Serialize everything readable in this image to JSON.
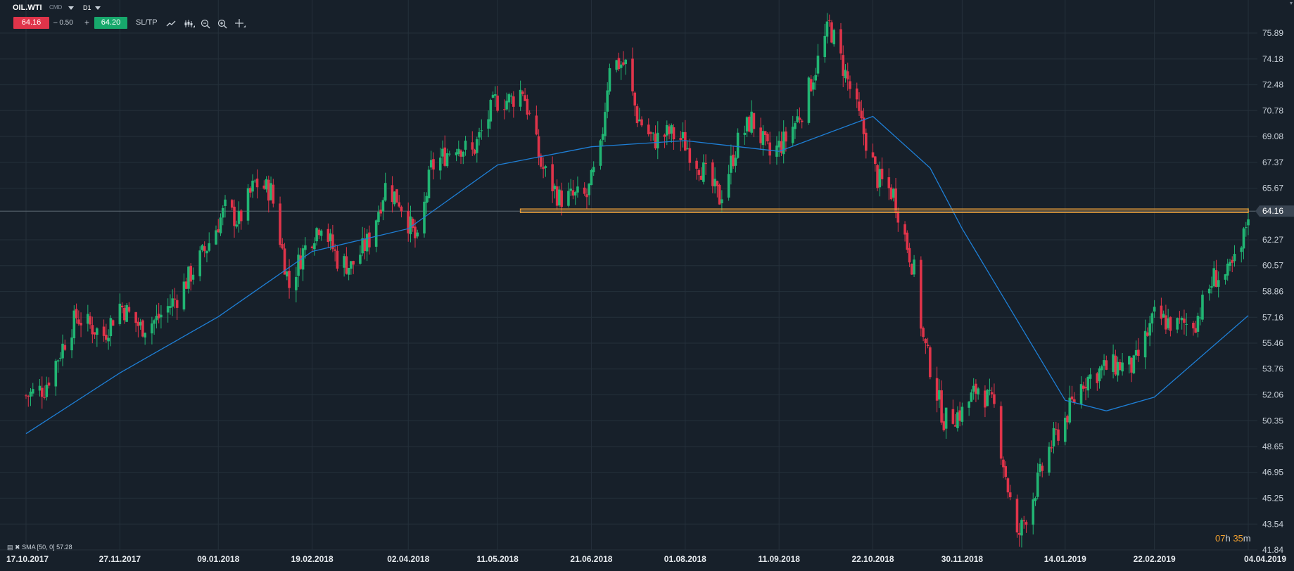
{
  "header": {
    "symbol": "OIL.WTI",
    "category": "CMD",
    "interval": "D1",
    "sell_price": "64.16",
    "buy_price": "64.20",
    "spread": "– 0.50",
    "plus": "+",
    "sltp": "SL/TP",
    "tools": [
      "line-chart-icon",
      "indicators-icon",
      "zoom-out-icon",
      "zoom-in-icon",
      "crosshair-icon"
    ]
  },
  "indicator_legend": "SMA [50, 0] 57.28",
  "timer": {
    "hours": "07",
    "h": "h",
    "minutes": "35",
    "m": "m"
  },
  "colors": {
    "background": "#17202a",
    "bull": "#21b573",
    "bear": "#e0344a",
    "sma": "#1e7fd6",
    "level": "#e39b3a",
    "grid": "#25303b"
  },
  "chart_data": {
    "type": "candlestick",
    "symbol": "OIL.WTI",
    "timeframe": "D1",
    "y_ticks": [
      "75.89",
      "74.18",
      "72.48",
      "70.78",
      "69.08",
      "67.37",
      "65.67",
      "64.16",
      "62.27",
      "60.57",
      "58.86",
      "57.16",
      "55.46",
      "53.76",
      "52.06",
      "50.35",
      "48.65",
      "46.95",
      "45.25",
      "43.54",
      "41.84"
    ],
    "ylim": [
      41.84,
      75.89
    ],
    "x_ticks": [
      "17.10.2017",
      "27.11.2017",
      "09.01.2018",
      "19.02.2018",
      "02.04.2018",
      "11.05.2018",
      "21.06.2018",
      "01.08.2018",
      "11.09.2018",
      "22.10.2018",
      "30.11.2018",
      "14.01.2019",
      "22.02.2019",
      "04.04.2019"
    ],
    "current_price": 64.16,
    "horizontal_level": {
      "value": 64.16,
      "from": "2018-05-21",
      "to": "2019-04-04"
    },
    "close_path": [
      [
        "2017-10-17",
        52.0
      ],
      [
        "2017-10-25",
        52.5
      ],
      [
        "2017-11-03",
        55.6
      ],
      [
        "2017-11-08",
        57.2
      ],
      [
        "2017-11-20",
        56.0
      ],
      [
        "2017-11-27",
        58.0
      ],
      [
        "2017-12-06",
        56.5
      ],
      [
        "2017-12-13",
        57.0
      ],
      [
        "2017-12-22",
        58.5
      ],
      [
        "2018-01-04",
        61.8
      ],
      [
        "2018-01-12",
        64.3
      ],
      [
        "2018-01-18",
        63.5
      ],
      [
        "2018-01-25",
        66.0
      ],
      [
        "2018-02-01",
        65.5
      ],
      [
        "2018-02-09",
        59.2
      ],
      [
        "2018-02-15",
        61.5
      ],
      [
        "2018-02-23",
        63.5
      ],
      [
        "2018-03-02",
        61.0
      ],
      [
        "2018-03-08",
        60.5
      ],
      [
        "2018-03-16",
        62.3
      ],
      [
        "2018-03-23",
        65.8
      ],
      [
        "2018-03-29",
        64.9
      ],
      [
        "2018-04-06",
        62.0
      ],
      [
        "2018-04-12",
        67.0
      ],
      [
        "2018-04-23",
        68.6
      ],
      [
        "2018-04-30",
        68.0
      ],
      [
        "2018-05-10",
        71.4
      ],
      [
        "2018-05-17",
        71.5
      ],
      [
        "2018-05-22",
        72.2
      ],
      [
        "2018-05-30",
        67.2
      ],
      [
        "2018-06-07",
        65.0
      ],
      [
        "2018-06-15",
        65.1
      ],
      [
        "2018-06-19",
        65.1
      ],
      [
        "2018-06-25",
        68.1
      ],
      [
        "2018-06-29",
        74.0
      ],
      [
        "2018-07-06",
        73.8
      ],
      [
        "2018-07-11",
        70.4
      ],
      [
        "2018-07-18",
        68.8
      ],
      [
        "2018-07-25",
        69.3
      ],
      [
        "2018-07-31",
        68.8
      ],
      [
        "2018-08-08",
        67.0
      ],
      [
        "2018-08-16",
        65.0
      ],
      [
        "2018-08-24",
        68.7
      ],
      [
        "2018-08-30",
        70.2
      ],
      [
        "2018-09-07",
        67.8
      ],
      [
        "2018-09-14",
        68.9
      ],
      [
        "2018-09-21",
        70.8
      ],
      [
        "2018-10-03",
        76.4
      ],
      [
        "2018-10-10",
        73.2
      ],
      [
        "2018-10-17",
        69.8
      ],
      [
        "2018-10-24",
        66.3
      ],
      [
        "2018-10-31",
        65.3
      ],
      [
        "2018-11-09",
        60.2
      ],
      [
        "2018-11-13",
        55.7
      ],
      [
        "2018-11-22",
        50.4
      ],
      [
        "2018-11-30",
        50.9
      ],
      [
        "2018-12-07",
        52.6
      ],
      [
        "2018-12-14",
        51.2
      ],
      [
        "2018-12-20",
        45.9
      ],
      [
        "2018-12-24",
        42.5
      ],
      [
        "2018-12-31",
        45.4
      ],
      [
        "2019-01-07",
        48.5
      ],
      [
        "2019-01-14",
        50.5
      ],
      [
        "2019-01-22",
        53.0
      ],
      [
        "2019-01-31",
        53.8
      ],
      [
        "2019-02-06",
        54.0
      ],
      [
        "2019-02-13",
        53.9
      ],
      [
        "2019-02-22",
        57.2
      ],
      [
        "2019-03-04",
        56.6
      ],
      [
        "2019-03-12",
        56.9
      ],
      [
        "2019-03-20",
        59.8
      ],
      [
        "2019-03-26",
        59.9
      ],
      [
        "2019-04-01",
        61.6
      ],
      [
        "2019-04-04",
        64.16
      ]
    ],
    "sma": {
      "name": "SMA [50, 0]",
      "last": 57.28,
      "path": [
        [
          "2017-10-17",
          49.5
        ],
        [
          "2017-11-27",
          53.5
        ],
        [
          "2018-01-09",
          57.2
        ],
        [
          "2018-02-19",
          61.5
        ],
        [
          "2018-04-02",
          63.0
        ],
        [
          "2018-05-11",
          67.2
        ],
        [
          "2018-06-21",
          68.4
        ],
        [
          "2018-08-01",
          68.8
        ],
        [
          "2018-09-11",
          68.1
        ],
        [
          "2018-10-22",
          70.4
        ],
        [
          "2018-11-16",
          67.0
        ],
        [
          "2018-11-30",
          63.0
        ],
        [
          "2019-01-14",
          51.7
        ],
        [
          "2019-02-01",
          51.0
        ],
        [
          "2019-02-22",
          51.9
        ],
        [
          "2019-04-04",
          57.28
        ]
      ]
    }
  }
}
